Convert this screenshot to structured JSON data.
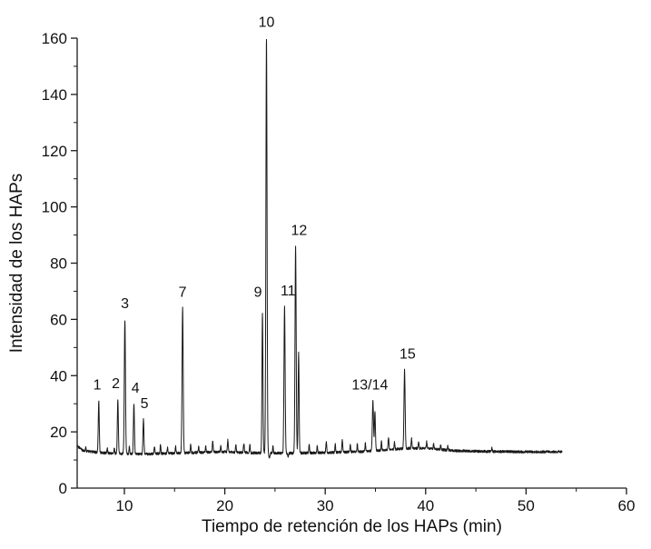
{
  "chart_data": {
    "type": "line",
    "title": "",
    "xlabel": "Tiempo de retención de los HAPs (min)",
    "ylabel": "Intensidad de los HAPs",
    "xlim": [
      5.3,
      60
    ],
    "ylim": [
      0,
      160
    ],
    "xticks": [
      10,
      20,
      30,
      40,
      50,
      60
    ],
    "xticks_minor": [
      15,
      25,
      35,
      45,
      55
    ],
    "yticks": [
      0,
      20,
      40,
      60,
      80,
      100,
      120,
      140,
      160
    ],
    "yticks_minor": [
      10,
      30,
      50,
      70,
      90,
      110,
      130,
      150
    ],
    "t_start": 5.3,
    "t_end": 53.6,
    "line_color": "#1a1a1a",
    "legend": "none",
    "grid": false,
    "baseline": [
      [
        5.3,
        15.2
      ],
      [
        5.8,
        13.4
      ],
      [
        7.0,
        12.8
      ],
      [
        9.0,
        12.3
      ],
      [
        12.0,
        12.1
      ],
      [
        16.0,
        12.5
      ],
      [
        20.0,
        12.9
      ],
      [
        23.0,
        12.5
      ],
      [
        26.0,
        12.4
      ],
      [
        28.0,
        12.5
      ],
      [
        31.0,
        12.7
      ],
      [
        34.0,
        13.0
      ],
      [
        36.0,
        13.6
      ],
      [
        38.0,
        14.1
      ],
      [
        40.0,
        14.2
      ],
      [
        41.5,
        13.7
      ],
      [
        43.0,
        13.3
      ],
      [
        45.0,
        13.1
      ],
      [
        47.0,
        13.0
      ],
      [
        50.0,
        12.9
      ],
      [
        53.6,
        12.9
      ]
    ],
    "peaks": [
      {
        "label": "1",
        "t": 7.45,
        "h": 31,
        "w": 0.07,
        "dx": -0.15,
        "dy": 4
      },
      {
        "label": "2",
        "t": 9.35,
        "h": 31.5,
        "w": 0.07,
        "dx": -0.2,
        "dy": 4
      },
      {
        "label": "3",
        "t": 10.05,
        "h": 60,
        "w": 0.08,
        "dx": 0,
        "dy": 4
      },
      {
        "label": "4",
        "t": 10.95,
        "h": 30,
        "w": 0.07,
        "dx": 0.15,
        "dy": 4
      },
      {
        "label": "5",
        "t": 11.9,
        "h": 24.5,
        "w": 0.07,
        "dx": 0.1,
        "dy": 4
      },
      {
        "label": "7",
        "t": 15.8,
        "h": 64,
        "w": 0.08,
        "dx": 0,
        "dy": 4
      },
      {
        "label": "9",
        "t": 23.75,
        "h": 62,
        "w": 0.07,
        "dx": -0.45,
        "dy": 6
      },
      {
        "label": "10",
        "t": 24.15,
        "h": 160,
        "w": 0.08,
        "dx": 0,
        "dy": 4
      },
      {
        "label": "11",
        "t": 25.95,
        "h": 64.5,
        "w": 0.08,
        "dx": 0.35,
        "dy": 4
      },
      {
        "label": "12",
        "t": 27.05,
        "h": 86,
        "w": 0.08,
        "dx": 0.35,
        "dy": 4
      },
      {
        "label": "13/14",
        "t": 34.75,
        "h": 31,
        "w": 0.08,
        "dx": -0.3,
        "dy": 4
      },
      {
        "label": "15",
        "t": 37.9,
        "h": 42,
        "w": 0.08,
        "dx": 0.3,
        "dy": 4
      }
    ],
    "minor_peaks": [
      {
        "t": 6.15,
        "h": 14.5,
        "w": 0.05
      },
      {
        "t": 8.3,
        "h": 14.2,
        "w": 0.05
      },
      {
        "t": 9.0,
        "h": 14.5,
        "w": 0.05
      },
      {
        "t": 10.5,
        "h": 15.0,
        "w": 0.05
      },
      {
        "t": 13.0,
        "h": 15.0,
        "w": 0.05
      },
      {
        "t": 13.6,
        "h": 15.5,
        "w": 0.05
      },
      {
        "t": 14.3,
        "h": 14.5,
        "w": 0.05
      },
      {
        "t": 15.1,
        "h": 14.8,
        "w": 0.05
      },
      {
        "t": 16.6,
        "h": 15.5,
        "w": 0.05
      },
      {
        "t": 17.4,
        "h": 15.0,
        "w": 0.05
      },
      {
        "t": 18.1,
        "h": 14.8,
        "w": 0.05
      },
      {
        "t": 18.8,
        "h": 16.5,
        "w": 0.06
      },
      {
        "t": 19.6,
        "h": 15.0,
        "w": 0.05
      },
      {
        "t": 20.3,
        "h": 17.0,
        "w": 0.06
      },
      {
        "t": 21.1,
        "h": 15.5,
        "w": 0.05
      },
      {
        "t": 21.9,
        "h": 16.0,
        "w": 0.06
      },
      {
        "t": 22.5,
        "h": 15.5,
        "w": 0.05
      },
      {
        "t": 24.45,
        "h": 10.8,
        "w": 0.08
      },
      {
        "t": 24.8,
        "h": 15.0,
        "w": 0.05
      },
      {
        "t": 26.3,
        "h": 11.2,
        "w": 0.06
      },
      {
        "t": 27.35,
        "h": 48.0,
        "w": 0.07
      },
      {
        "t": 28.4,
        "h": 15.5,
        "w": 0.05
      },
      {
        "t": 29.2,
        "h": 15.0,
        "w": 0.05
      },
      {
        "t": 30.1,
        "h": 16.5,
        "w": 0.06
      },
      {
        "t": 31.0,
        "h": 15.5,
        "w": 0.05
      },
      {
        "t": 31.7,
        "h": 17.0,
        "w": 0.06
      },
      {
        "t": 32.5,
        "h": 15.5,
        "w": 0.05
      },
      {
        "t": 33.2,
        "h": 16.0,
        "w": 0.05
      },
      {
        "t": 34.0,
        "h": 16.0,
        "w": 0.05
      },
      {
        "t": 34.95,
        "h": 27.0,
        "w": 0.07
      },
      {
        "t": 35.6,
        "h": 16.5,
        "w": 0.05
      },
      {
        "t": 36.3,
        "h": 18.0,
        "w": 0.06
      },
      {
        "t": 36.9,
        "h": 16.5,
        "w": 0.05
      },
      {
        "t": 38.6,
        "h": 17.5,
        "w": 0.06
      },
      {
        "t": 39.3,
        "h": 16.5,
        "w": 0.05
      },
      {
        "t": 40.1,
        "h": 16.5,
        "w": 0.05
      },
      {
        "t": 40.8,
        "h": 16.0,
        "w": 0.05
      },
      {
        "t": 41.5,
        "h": 15.5,
        "w": 0.05
      },
      {
        "t": 42.2,
        "h": 15.0,
        "w": 0.05
      },
      {
        "t": 46.6,
        "h": 14.3,
        "w": 0.05
      }
    ]
  }
}
